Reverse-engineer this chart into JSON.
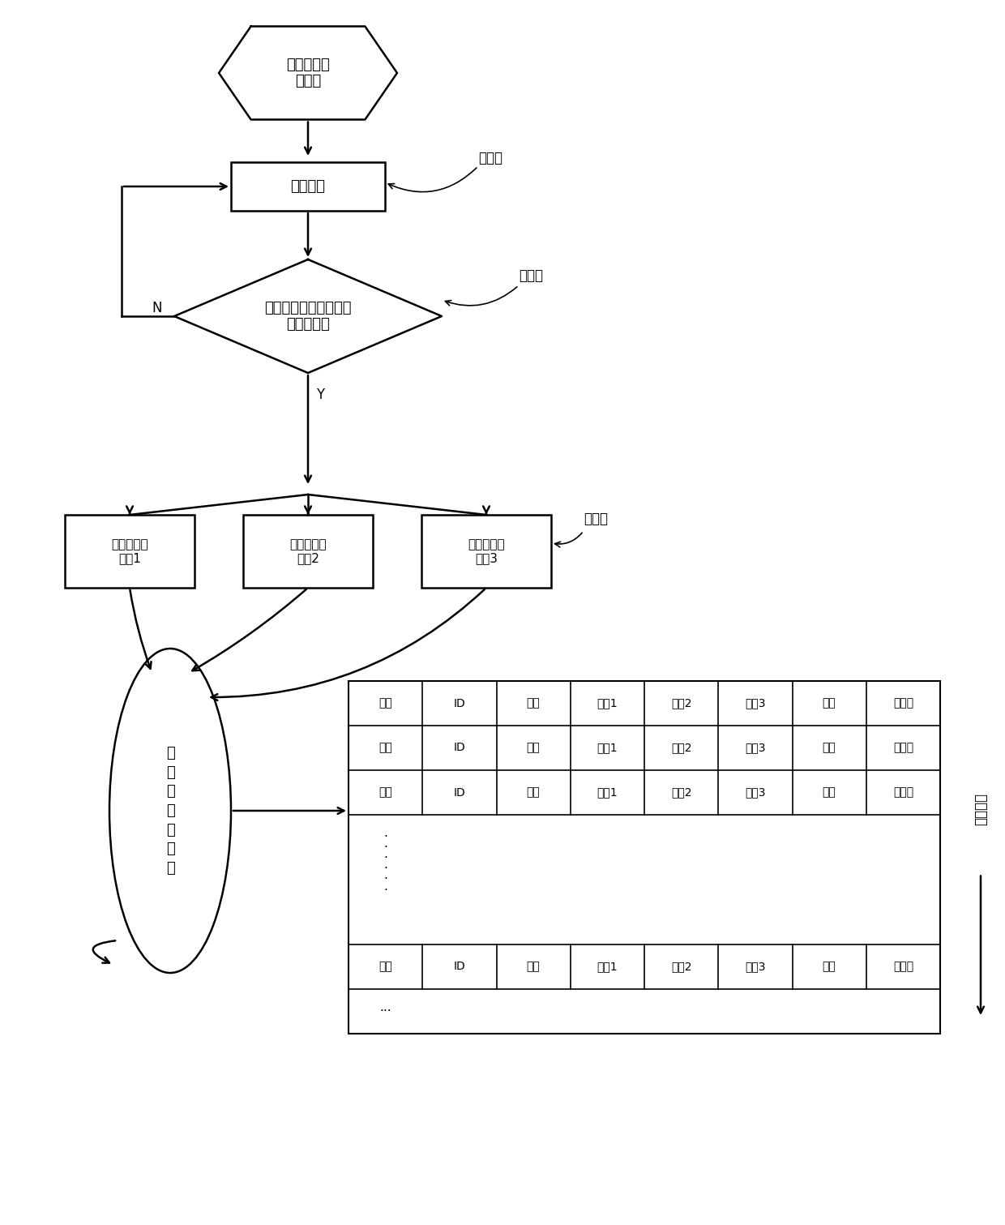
{
  "bg_color": "#ffffff",
  "line_color": "#000000",
  "hexagon_text": "进入数据接\n收函数",
  "rect1_text": "接收数据",
  "diamond_text": "进行数据完整性检查，\n数据完整？",
  "box1_text": "循环二级缓\n冲区1",
  "box2_text": "循环二级缓\n冲区2",
  "box3_text": "循环二级缓\n冲区3",
  "ellipse_text": "循\n环\n二\n级\n缓\n冲\n区",
  "step1_text": "第一步",
  "step2_text": "第二步",
  "step3_text": "第三步",
  "fifo_text": "先进先出",
  "N_label": "N",
  "Y_label": "Y",
  "table_headers": [
    "帧头",
    "ID",
    "时标",
    "通道1",
    "通道2",
    "通道3",
    "数值",
    "帧校验"
  ]
}
